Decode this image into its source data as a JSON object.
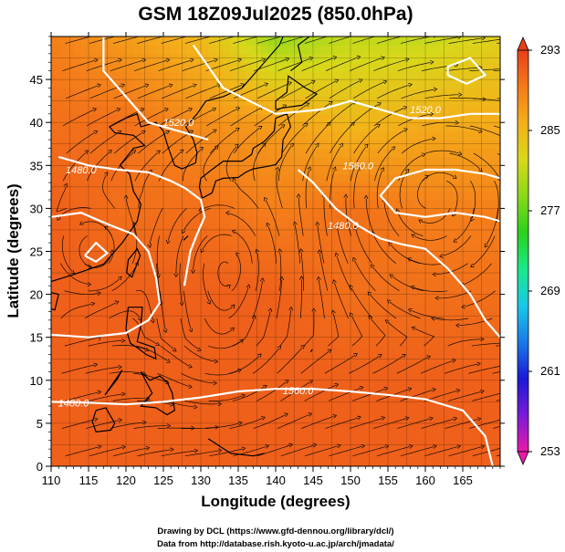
{
  "chart_data": {
    "type": "heatmap",
    "title": "GSM 18Z09Jul2025 (850.0hPa)",
    "xlabel": "Longitude (degrees)",
    "ylabel": "Latitude  (degrees)",
    "xlim": [
      110,
      170
    ],
    "ylim": [
      0,
      50
    ],
    "xticks": [
      "110",
      "115",
      "120",
      "125",
      "130",
      "135",
      "140",
      "145",
      "150",
      "155",
      "160",
      "165"
    ],
    "yticks": [
      "0",
      "5",
      "10",
      "15",
      "20",
      "25",
      "30",
      "35",
      "40",
      "45"
    ],
    "colorbar": {
      "min": 253,
      "max": 293,
      "ticks": [
        "293",
        "285",
        "277",
        "269",
        "261",
        "253"
      ],
      "colors": [
        "#e81ba8",
        "#7a1ad6",
        "#1a1ad6",
        "#1a7ae8",
        "#19c8e8",
        "#1ae88a",
        "#2ad21a",
        "#8ad81a",
        "#d8d81a",
        "#f4b01a",
        "#f47a1a",
        "#e8401a"
      ]
    },
    "temperature_field_K": {
      "lon": [
        110,
        120,
        130,
        140,
        150,
        160,
        170
      ],
      "lat": [
        50,
        40,
        30,
        20,
        10,
        0
      ],
      "values": [
        [
          289,
          287,
          285,
          279,
          281,
          281,
          283
        ],
        [
          290,
          290,
          288,
          287,
          285,
          286,
          286
        ],
        [
          291,
          290,
          290,
          289,
          290,
          289,
          289
        ],
        [
          291,
          291,
          291,
          291,
          290,
          290,
          290
        ],
        [
          291,
          291,
          291,
          291,
          291,
          291,
          291
        ],
        [
          291,
          291,
          291,
          291,
          291,
          291,
          291
        ]
      ]
    },
    "height_contours_gpm": {
      "interval": 40,
      "labels": [
        "1520.0",
        "1480.0",
        "1560.0",
        "1520.0",
        "1480.0",
        "1480.0",
        "1560.0"
      ]
    },
    "credits": [
      "Drawing by DCL (https://www.gfd-dennou.org/library/dcl/)",
      "Data from http://database.rish.kyoto-u.ac.jp/arch/jmadata/"
    ]
  }
}
